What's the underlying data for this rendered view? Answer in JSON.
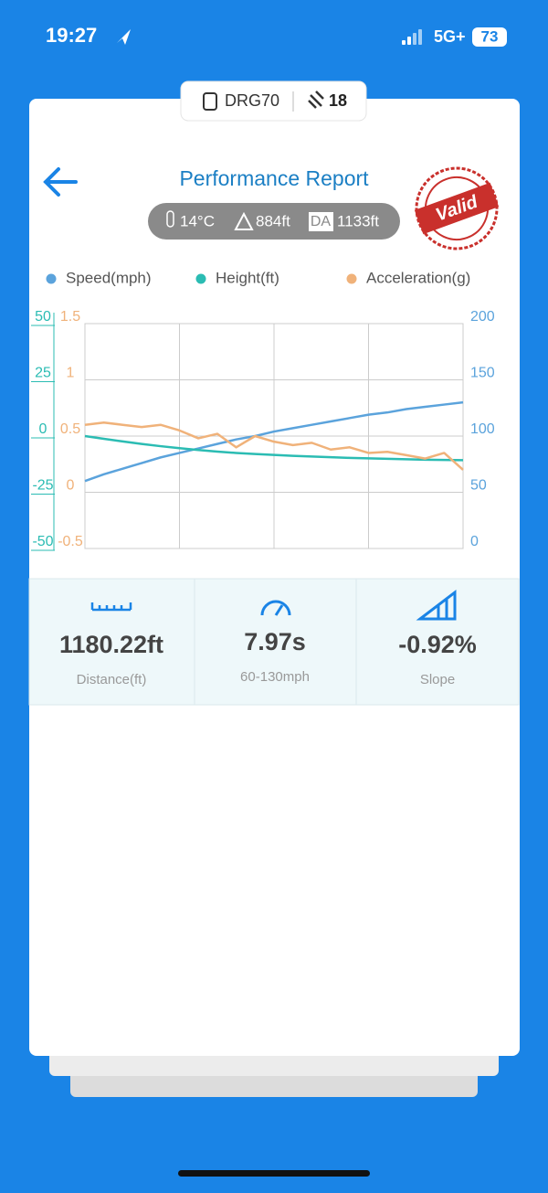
{
  "status_bar": {
    "time": "19:27",
    "network": "5G+",
    "battery": "73"
  },
  "device": {
    "name": "DRG70",
    "count": "18"
  },
  "header": {
    "title": "Performance Report",
    "stamp": "Valid"
  },
  "conditions": {
    "temperature": "14°C",
    "elevation": "884ft",
    "da_label": "DA",
    "density_altitude": "1133ft"
  },
  "chart_data": {
    "type": "line",
    "grid": true,
    "legend": "top",
    "ylim": [
      -50,
      50
    ],
    "yticks": [
      -50,
      -25,
      0,
      25,
      50
    ],
    "ycolor": "#2bbcb3",
    "y3lim": [
      -0.5,
      1.5
    ],
    "y3ticks": [
      -0.5,
      0,
      0.5,
      1,
      1.5
    ],
    "y3color": "#f0b27a",
    "y2lim": [
      0,
      200
    ],
    "y2ticks": [
      0,
      50,
      100,
      150,
      200
    ],
    "y2color": "#5ba3dc",
    "series": [
      {
        "name": "Speed(mph)",
        "color": "#5ba3dc",
        "axis": "y2",
        "values": [
          60,
          66,
          71,
          76,
          81,
          85,
          89,
          93,
          97,
          100,
          104,
          107,
          110,
          113,
          116,
          119,
          121,
          124,
          126,
          128,
          130
        ]
      },
      {
        "name": "Height(ft)",
        "color": "#2bbcb3",
        "axis": "y",
        "values": [
          0,
          -1.2,
          -2.4,
          -3.5,
          -4.5,
          -5.4,
          -6.2,
          -6.9,
          -7.5,
          -8,
          -8.4,
          -8.8,
          -9.1,
          -9.4,
          -9.7,
          -9.9,
          -10.1,
          -10.3,
          -10.5,
          -10.6,
          -10.7
        ]
      },
      {
        "name": "Acceleration(g)",
        "color": "#f0b27a",
        "axis": "y3",
        "values": [
          0.6,
          0.62,
          0.6,
          0.58,
          0.6,
          0.55,
          0.48,
          0.52,
          0.4,
          0.5,
          0.45,
          0.42,
          0.44,
          0.38,
          0.4,
          0.35,
          0.36,
          0.33,
          0.3,
          0.35,
          0.2
        ]
      }
    ]
  },
  "stats": [
    {
      "value": "1180.22ft",
      "label": "Distance(ft)"
    },
    {
      "value": "7.97s",
      "label": "60-130mph"
    },
    {
      "value": "-0.92%",
      "label": "Slope"
    }
  ]
}
